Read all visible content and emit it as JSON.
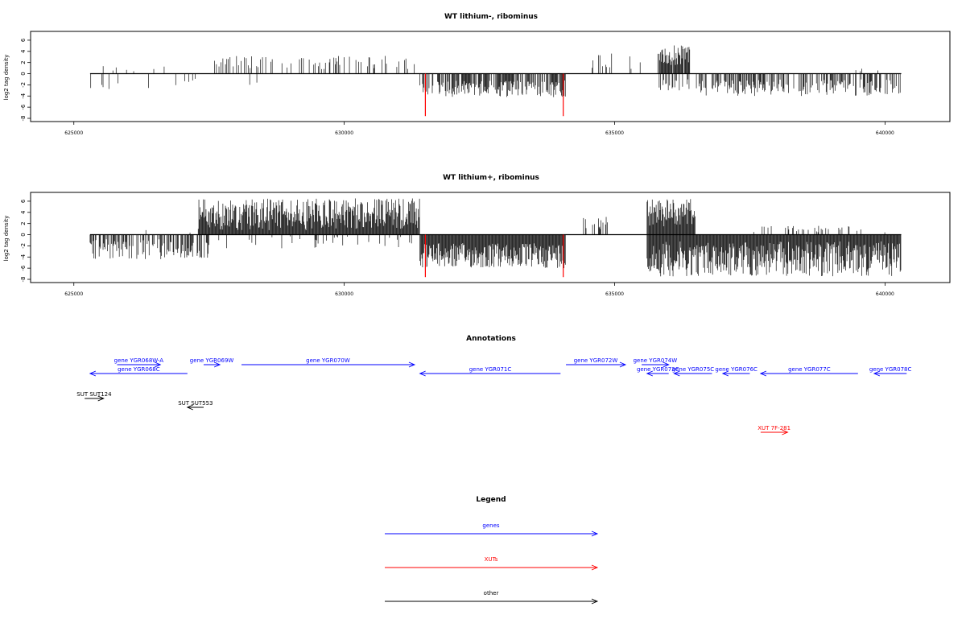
{
  "chart_data": [
    {
      "type": "bar",
      "title": "WT lithium-, ribominus",
      "ylabel": "log2 tag density",
      "xlabel": "",
      "xlim": [
        624200,
        641200
      ],
      "ylim": [
        -8,
        7
      ],
      "xticks": [
        625000,
        630000,
        635000,
        640000
      ],
      "yticks": [
        -8,
        -6,
        -4,
        -2,
        0,
        2,
        4,
        6
      ],
      "grid": false,
      "regions": [
        {
          "strand": "plus",
          "start": 625350,
          "end": 627600,
          "min": 0.4,
          "max": 1.4,
          "density": 0.04
        },
        {
          "strand": "plus",
          "start": 627600,
          "end": 631300,
          "min": 0.8,
          "max": 3.2,
          "density": 0.18
        },
        {
          "strand": "plus",
          "start": 634500,
          "end": 635500,
          "min": 0.8,
          "max": 3.6,
          "density": 0.15
        },
        {
          "strand": "plus",
          "start": 635800,
          "end": 636400,
          "min": 1.5,
          "max": 5.2,
          "density": 0.9
        },
        {
          "strand": "plus",
          "start": 638500,
          "end": 640200,
          "min": 0.3,
          "max": 1.0,
          "density": 0.03
        },
        {
          "strand": "minus",
          "start": 625300,
          "end": 627400,
          "min": 0.8,
          "max": 2.8,
          "density": 0.12
        },
        {
          "strand": "minus",
          "start": 627400,
          "end": 630000,
          "min": 0.5,
          "max": 2.0,
          "density": 0.02
        },
        {
          "strand": "minus",
          "start": 631400,
          "end": 634100,
          "min": 1.2,
          "max": 4.2,
          "density": 0.7
        },
        {
          "strand": "minus",
          "start": 635800,
          "end": 636400,
          "min": 1.0,
          "max": 3.5,
          "density": 0.35
        },
        {
          "strand": "minus",
          "start": 636500,
          "end": 640300,
          "min": 1.0,
          "max": 4.0,
          "density": 0.55
        }
      ],
      "highlights": [
        {
          "x": 631500,
          "y": -7.6,
          "color": "#ff0000"
        },
        {
          "x": 634050,
          "y": -7.6,
          "color": "#ff0000"
        }
      ],
      "seed": 11
    },
    {
      "type": "bar",
      "title": "WT lithium+, ribominus",
      "ylabel": "log2 tag density",
      "xlabel": "",
      "xlim": [
        624200,
        641200
      ],
      "ylim": [
        -8,
        7
      ],
      "xticks": [
        625000,
        630000,
        635000,
        640000
      ],
      "yticks": [
        -8,
        -6,
        -4,
        -2,
        0,
        2,
        4,
        6
      ],
      "grid": false,
      "regions": [
        {
          "strand": "plus",
          "start": 626200,
          "end": 627200,
          "min": 0.3,
          "max": 1.2,
          "density": 0.04
        },
        {
          "strand": "plus",
          "start": 627300,
          "end": 631400,
          "min": 0.8,
          "max": 6.5,
          "density": 1.0
        },
        {
          "strand": "plus",
          "start": 634400,
          "end": 634900,
          "min": 0.8,
          "max": 3.2,
          "density": 0.3
        },
        {
          "strand": "plus",
          "start": 635600,
          "end": 636500,
          "min": 1.5,
          "max": 6.5,
          "density": 1.0
        },
        {
          "strand": "plus",
          "start": 637500,
          "end": 640000,
          "min": 0.3,
          "max": 1.6,
          "density": 0.15
        },
        {
          "strand": "minus",
          "start": 625300,
          "end": 627500,
          "min": 0.8,
          "max": 4.5,
          "density": 0.5
        },
        {
          "strand": "minus",
          "start": 627500,
          "end": 631300,
          "min": 0.3,
          "max": 2.5,
          "density": 0.1
        },
        {
          "strand": "minus",
          "start": 631400,
          "end": 634100,
          "min": 1.5,
          "max": 6.0,
          "density": 1.0
        },
        {
          "strand": "minus",
          "start": 635600,
          "end": 640300,
          "min": 1.2,
          "max": 7.5,
          "density": 1.0
        }
      ],
      "highlights": [
        {
          "x": 631500,
          "y": -7.6,
          "color": "#ff0000"
        },
        {
          "x": 634050,
          "y": -7.6,
          "color": "#ff0000"
        }
      ],
      "seed": 29
    }
  ],
  "annotations": {
    "title": "Annotations",
    "features": [
      {
        "label": "gene YGR068W-A",
        "start": 625800,
        "end": 626600,
        "dir": "right",
        "row": 0,
        "color": "#0000ff"
      },
      {
        "label": "gene YGR069W",
        "start": 627400,
        "end": 627700,
        "dir": "right",
        "row": 0,
        "color": "#0000ff"
      },
      {
        "label": "gene YGR070W",
        "start": 628100,
        "end": 631300,
        "dir": "right",
        "row": 0,
        "color": "#0000ff"
      },
      {
        "label": "gene YGR072W",
        "start": 634100,
        "end": 635200,
        "dir": "right",
        "row": 0,
        "color": "#0000ff"
      },
      {
        "label": "gene YGR074W",
        "start": 635500,
        "end": 636000,
        "dir": "right",
        "row": 0,
        "color": "#0000ff"
      },
      {
        "label": "gene YGR068C",
        "start": 625300,
        "end": 627100,
        "dir": "left",
        "row": 1,
        "color": "#0000ff"
      },
      {
        "label": "gene YGR071C",
        "start": 631400,
        "end": 634000,
        "dir": "left",
        "row": 1,
        "color": "#0000ff"
      },
      {
        "label": "gene YGR073C",
        "start": 635600,
        "end": 636000,
        "dir": "left",
        "row": 1,
        "color": "#0000ff"
      },
      {
        "label": "gene YGR075C",
        "start": 636100,
        "end": 636800,
        "dir": "left",
        "row": 1,
        "color": "#0000ff"
      },
      {
        "label": "gene YGR076C",
        "start": 637000,
        "end": 637500,
        "dir": "left",
        "row": 1,
        "color": "#0000ff"
      },
      {
        "label": "gene YGR077C",
        "start": 637700,
        "end": 639500,
        "dir": "left",
        "row": 1,
        "color": "#0000ff"
      },
      {
        "label": "gene YGR078C",
        "start": 639800,
        "end": 640400,
        "dir": "left",
        "row": 1,
        "color": "#0000ff"
      },
      {
        "label": "SUT SUT124",
        "start": 625200,
        "end": 625550,
        "dir": "right",
        "row": 2,
        "color": "#000000"
      },
      {
        "label": "SUT SUT553",
        "start": 627100,
        "end": 627400,
        "dir": "left",
        "row": 3,
        "color": "#000000"
      },
      {
        "label": "XUT 7F-281",
        "start": 637700,
        "end": 638200,
        "dir": "right",
        "row": 4,
        "color": "#ff0000"
      }
    ]
  },
  "legend": {
    "title": "Legend",
    "items": [
      {
        "label": "genes",
        "color": "#0000ff"
      },
      {
        "label": "XUTs",
        "color": "#ff0000"
      },
      {
        "label": "other",
        "color": "#000000"
      }
    ]
  }
}
